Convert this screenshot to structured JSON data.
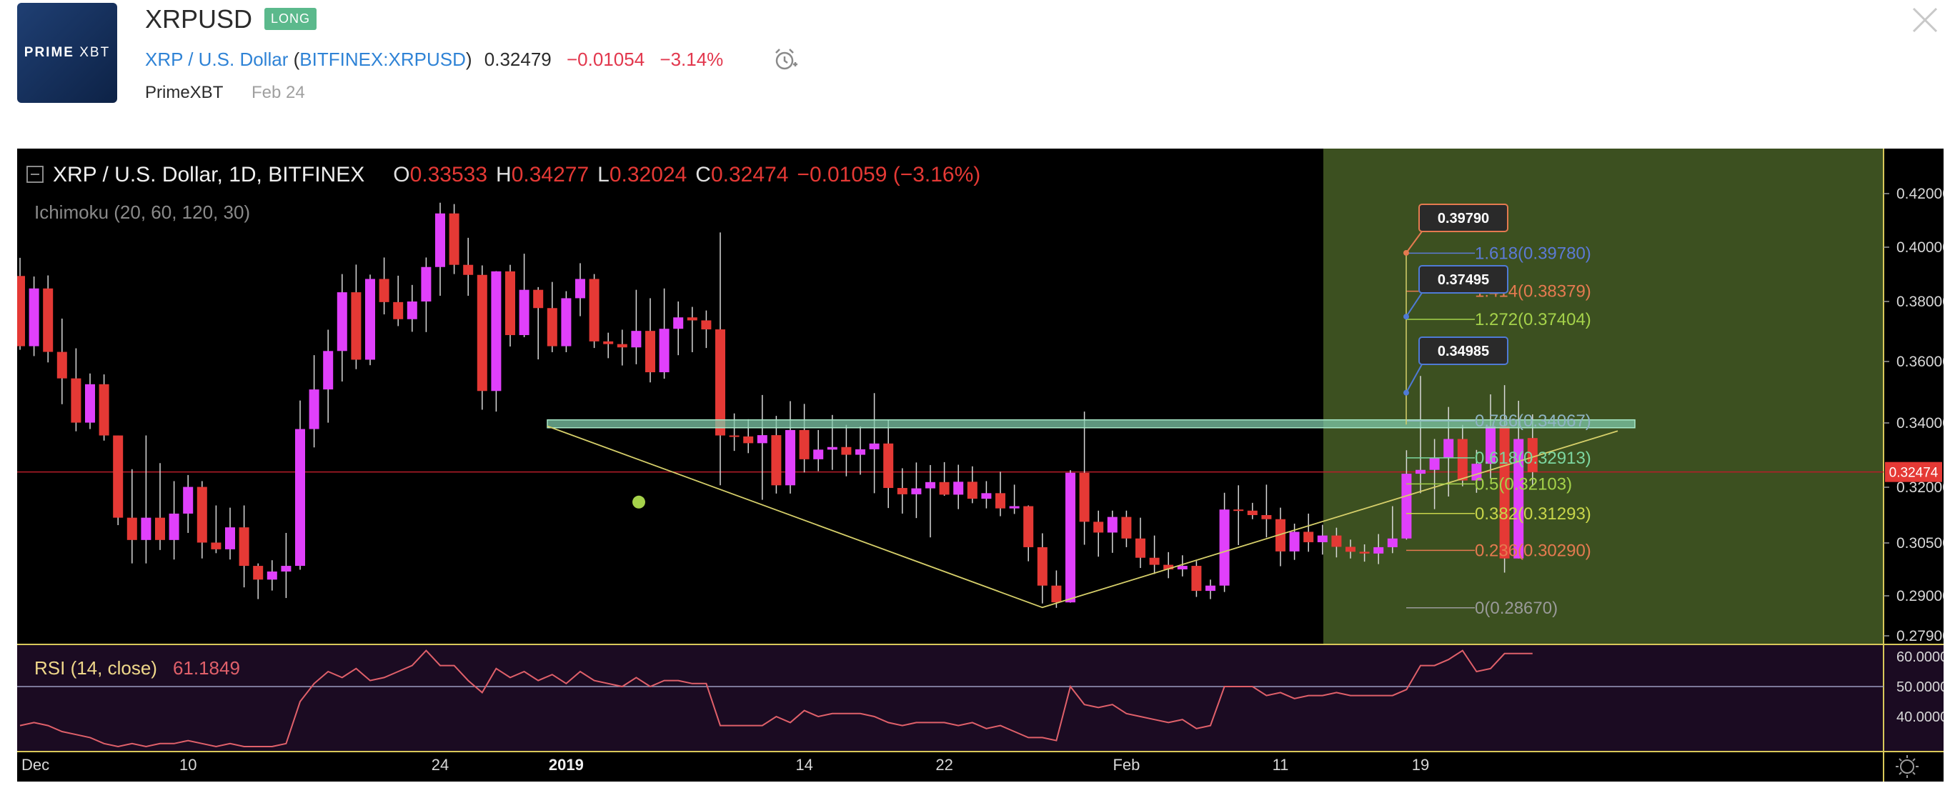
{
  "header": {
    "logo_text_bold": "PRIME",
    "logo_text_light": "XBT",
    "symbol": "XRPUSD",
    "badge": "LONG",
    "pair_name": "XRP / U.S. Dollar",
    "exchange_open": "(",
    "exchange_link": "BITFINEX:XRPUSD",
    "exchange_close": ")",
    "price": "0.32479",
    "change": "−0.01054",
    "change_pct": "−3.14%",
    "author": "PrimeXBT",
    "date": "Feb 24"
  },
  "legend": {
    "title": "XRP / U.S. Dollar, 1D, BITFINEX",
    "o_label": "O",
    "o_value": "0.33533",
    "h_label": "H",
    "h_value": "0.34277",
    "l_label": "L",
    "l_value": "0.32024",
    "c_label": "C",
    "c_value": "0.32474",
    "change": "−0.01059 (−3.16%)",
    "indicator": "Ichimoku (20, 60, 120, 30)"
  },
  "rsi": {
    "label": "RSI (14, close)",
    "value": "61.1849",
    "ticks": [
      "60.0000",
      "50.0000",
      "40.0000"
    ]
  },
  "fib_labels": {
    "f1618": "1.618(0.39780)",
    "f1414": "1.414(0.38379)",
    "f1272": "1.272(0.37404)",
    "f0786": "0.786(0.34067)",
    "f0618": "0.618(0.32913)",
    "f05": "0.5(0.32103)",
    "f0382": "0.382(0.31293)",
    "f0236": "0.236(0.30290)",
    "f0": "0(0.28670)"
  },
  "callouts": {
    "c1": "0.39790",
    "c2": "0.37495",
    "c3": "0.34985"
  },
  "last_price_label": "0.32474",
  "colors": {
    "up": "#e040fb",
    "down": "#e53935",
    "fib_blue": "#5c7ad6",
    "fib_orange": "#e57a50",
    "fib_green": "#a5d24a",
    "resistance_band": "#7ec8a8",
    "projection_zone": "#3c5020",
    "rsi_line": "#e0606a",
    "link": "#2f83d6",
    "badge": "#5bb98c"
  },
  "chart_data": {
    "type": "candlestick",
    "title": "XRP / U.S. Dollar, 1D, BITFINEX",
    "price_axis_ticks": [
      "0.42000",
      "0.40000",
      "0.38000",
      "0.36000",
      "0.34000",
      "0.32000",
      "0.30500",
      "0.29000",
      "0.27900"
    ],
    "time_axis_ticks": [
      "Dec",
      "10",
      "24",
      "2019",
      "14",
      "22",
      "Feb",
      "11",
      "19"
    ],
    "last_price": 0.32474,
    "candles": [
      [
        0.3894,
        0.3961,
        0.3639,
        0.3651
      ],
      [
        0.3651,
        0.3892,
        0.3618,
        0.3848
      ],
      [
        0.3848,
        0.3896,
        0.3597,
        0.3632
      ],
      [
        0.3632,
        0.3743,
        0.3461,
        0.3545
      ],
      [
        0.3545,
        0.3644,
        0.3374,
        0.3401
      ],
      [
        0.3401,
        0.3561,
        0.3381,
        0.3526
      ],
      [
        0.3526,
        0.3558,
        0.3345,
        0.3361
      ],
      [
        0.3361,
        0.3361,
        0.3098,
        0.3118
      ],
      [
        0.3118,
        0.3256,
        0.2992,
        0.3058
      ],
      [
        0.3058,
        0.3361,
        0.2992,
        0.3118
      ],
      [
        0.3118,
        0.3275,
        0.303,
        0.3058
      ],
      [
        0.3058,
        0.3219,
        0.3003,
        0.3129
      ],
      [
        0.3129,
        0.3238,
        0.3077,
        0.3201
      ],
      [
        0.3201,
        0.3219,
        0.3006,
        0.3051
      ],
      [
        0.3051,
        0.3151,
        0.3021,
        0.3032
      ],
      [
        0.3032,
        0.3145,
        0.3003,
        0.3092
      ],
      [
        0.3092,
        0.3151,
        0.2924,
        0.2985
      ],
      [
        0.2985,
        0.2992,
        0.2891,
        0.2946
      ],
      [
        0.2946,
        0.3001,
        0.2915,
        0.2969
      ],
      [
        0.2969,
        0.3077,
        0.2894,
        0.2985
      ],
      [
        0.2985,
        0.3473,
        0.2974,
        0.3381
      ],
      [
        0.3381,
        0.3621,
        0.3324,
        0.3509
      ],
      [
        0.3509,
        0.3706,
        0.3401,
        0.3635
      ],
      [
        0.3635,
        0.3901,
        0.3535,
        0.3834
      ],
      [
        0.3834,
        0.3936,
        0.3575,
        0.3606
      ],
      [
        0.3606,
        0.3899,
        0.3588,
        0.3883
      ],
      [
        0.3883,
        0.3962,
        0.3757,
        0.3798
      ],
      [
        0.3798,
        0.3895,
        0.3718,
        0.3741
      ],
      [
        0.3741,
        0.3861,
        0.3699,
        0.38
      ],
      [
        0.38,
        0.3962,
        0.3698,
        0.3927
      ],
      [
        0.3927,
        0.4166,
        0.3821,
        0.4126
      ],
      [
        0.4126,
        0.4161,
        0.3901,
        0.3935
      ],
      [
        0.3935,
        0.4035,
        0.3821,
        0.3898
      ],
      [
        0.3898,
        0.3933,
        0.3443,
        0.3504
      ],
      [
        0.3504,
        0.3912,
        0.3437,
        0.3911
      ],
      [
        0.3911,
        0.3935,
        0.365,
        0.3688
      ],
      [
        0.3688,
        0.3976,
        0.3681,
        0.3843
      ],
      [
        0.3843,
        0.3853,
        0.3607,
        0.3778
      ],
      [
        0.3778,
        0.3872,
        0.3631,
        0.3651
      ],
      [
        0.3651,
        0.3838,
        0.3631,
        0.3812
      ],
      [
        0.3812,
        0.3941,
        0.3751,
        0.3883
      ],
      [
        0.3883,
        0.3901,
        0.3645,
        0.3667
      ],
      [
        0.3667,
        0.3696,
        0.3611,
        0.3658
      ],
      [
        0.3658,
        0.3706,
        0.3587,
        0.3647
      ],
      [
        0.3647,
        0.3843,
        0.3591,
        0.3702
      ],
      [
        0.3702,
        0.3812,
        0.3532,
        0.3565
      ],
      [
        0.3565,
        0.3848,
        0.3544,
        0.3709
      ],
      [
        0.3709,
        0.38,
        0.3621,
        0.3747
      ],
      [
        0.3747,
        0.3782,
        0.3631,
        0.3737
      ],
      [
        0.3737,
        0.377,
        0.3645,
        0.3707
      ],
      [
        0.3707,
        0.4055,
        0.3206,
        0.3361
      ],
      [
        0.3361,
        0.3431,
        0.3313,
        0.3358
      ],
      [
        0.3358,
        0.3412,
        0.3306,
        0.3337
      ],
      [
        0.3337,
        0.3491,
        0.3166,
        0.3362
      ],
      [
        0.3362,
        0.3423,
        0.3183,
        0.3206
      ],
      [
        0.3206,
        0.3471,
        0.3183,
        0.3378
      ],
      [
        0.3378,
        0.3462,
        0.3246,
        0.3287
      ],
      [
        0.3287,
        0.3378,
        0.325,
        0.3317
      ],
      [
        0.3317,
        0.3426,
        0.3254,
        0.3325
      ],
      [
        0.3325,
        0.3394,
        0.3234,
        0.3301
      ],
      [
        0.3301,
        0.3389,
        0.3239,
        0.3318
      ],
      [
        0.3318,
        0.3497,
        0.3184,
        0.3336
      ],
      [
        0.3336,
        0.3411,
        0.3144,
        0.3198
      ],
      [
        0.3198,
        0.3259,
        0.3129,
        0.3181
      ],
      [
        0.3181,
        0.3277,
        0.3117,
        0.3197
      ],
      [
        0.3197,
        0.3269,
        0.3065,
        0.3216
      ],
      [
        0.3216,
        0.3278,
        0.3177,
        0.318
      ],
      [
        0.318,
        0.327,
        0.3141,
        0.3217
      ],
      [
        0.3217,
        0.3265,
        0.3157,
        0.3169
      ],
      [
        0.3169,
        0.3219,
        0.3143,
        0.3184
      ],
      [
        0.3184,
        0.3248,
        0.3122,
        0.3143
      ],
      [
        0.3143,
        0.3208,
        0.3128,
        0.3149
      ],
      [
        0.3149,
        0.3151,
        0.2998,
        0.3038
      ],
      [
        0.3038,
        0.3076,
        0.2879,
        0.2929
      ],
      [
        0.2929,
        0.2972,
        0.2867,
        0.2882
      ],
      [
        0.2882,
        0.3253,
        0.2881,
        0.3245
      ],
      [
        0.3245,
        0.3437,
        0.3045,
        0.3107
      ],
      [
        0.3107,
        0.3137,
        0.3011,
        0.3078
      ],
      [
        0.3078,
        0.3137,
        0.3022,
        0.312
      ],
      [
        0.312,
        0.3137,
        0.3038,
        0.3062
      ],
      [
        0.3062,
        0.3118,
        0.2979,
        0.3008
      ],
      [
        0.3008,
        0.307,
        0.2962,
        0.2988
      ],
      [
        0.2988,
        0.3024,
        0.295,
        0.2975
      ],
      [
        0.2975,
        0.3015,
        0.2955,
        0.2985
      ],
      [
        0.2985,
        0.2999,
        0.2897,
        0.2914
      ],
      [
        0.2914,
        0.2946,
        0.2891,
        0.2929
      ],
      [
        0.2929,
        0.3185,
        0.2911,
        0.314
      ],
      [
        0.314,
        0.3206,
        0.3044,
        0.3137
      ],
      [
        0.3137,
        0.3158,
        0.3114,
        0.3125
      ],
      [
        0.3125,
        0.3208,
        0.3065,
        0.3114
      ],
      [
        0.3114,
        0.3145,
        0.2984,
        0.3026
      ],
      [
        0.3026,
        0.3102,
        0.3002,
        0.308
      ],
      [
        0.308,
        0.3129,
        0.3025,
        0.3052
      ],
      [
        0.3052,
        0.3099,
        0.3017,
        0.307
      ],
      [
        0.307,
        0.3091,
        0.3009,
        0.3039
      ],
      [
        0.3039,
        0.3059,
        0.3006,
        0.3025
      ],
      [
        0.3025,
        0.3046,
        0.2997,
        0.302
      ],
      [
        0.302,
        0.3074,
        0.299,
        0.3038
      ],
      [
        0.3038,
        0.3149,
        0.3021,
        0.3062
      ],
      [
        0.3062,
        0.3315,
        0.3059,
        0.3242
      ],
      [
        0.3242,
        0.3553,
        0.3184,
        0.3254
      ],
      [
        0.3254,
        0.335,
        0.3141,
        0.3292
      ],
      [
        0.3292,
        0.3452,
        0.3175,
        0.335
      ],
      [
        0.335,
        0.3394,
        0.3203,
        0.3221
      ],
      [
        0.3221,
        0.3316,
        0.3185,
        0.3273
      ],
      [
        0.3273,
        0.3493,
        0.3227,
        0.339
      ],
      [
        0.339,
        0.3523,
        0.2966,
        0.3006
      ],
      [
        0.3006,
        0.3472,
        0.3006,
        0.335
      ],
      [
        0.3353,
        0.3428,
        0.3202,
        0.3247
      ]
    ],
    "resistance_band": [
      0.3385,
      0.341
    ],
    "fib_levels": [
      {
        "ratio": "1.618",
        "price": 0.3978
      },
      {
        "ratio": "1.414",
        "price": 0.38379
      },
      {
        "ratio": "1.272",
        "price": 0.37404
      },
      {
        "ratio": "0.786",
        "price": 0.34067
      },
      {
        "ratio": "0.618",
        "price": 0.32913
      },
      {
        "ratio": "0.5",
        "price": 0.32103
      },
      {
        "ratio": "0.382",
        "price": 0.31293
      },
      {
        "ratio": "0.236",
        "price": 0.3029
      },
      {
        "ratio": "0",
        "price": 0.2867
      }
    ],
    "targets": [
      0.3979,
      0.37495,
      0.34985
    ],
    "rsi_values": [
      37,
      38,
      37,
      35,
      34,
      33,
      31,
      30,
      31,
      30,
      31,
      31,
      32,
      31,
      30,
      31,
      30,
      30,
      30,
      31,
      45,
      51,
      55,
      53,
      56,
      52,
      53,
      55,
      57,
      62,
      57,
      57,
      52,
      48,
      56,
      53,
      55,
      52,
      54,
      51,
      55,
      52,
      51,
      50,
      53,
      50,
      52,
      52,
      51,
      51,
      37,
      37,
      37,
      37,
      40,
      38,
      42,
      40,
      41,
      41,
      41,
      40,
      38,
      37,
      38,
      38,
      38,
      37,
      38,
      36,
      37,
      35,
      33,
      33,
      32,
      50,
      44,
      43,
      44,
      41,
      40,
      39,
      38,
      39,
      36,
      37,
      50,
      50,
      50,
      47,
      48,
      46,
      47,
      47,
      48,
      47,
      47,
      47,
      47,
      49,
      57,
      57,
      59,
      62,
      55,
      56,
      61,
      61,
      61
    ],
    "rsi_ticks": [
      "60.0000",
      "50.0000",
      "40.0000"
    ]
  }
}
